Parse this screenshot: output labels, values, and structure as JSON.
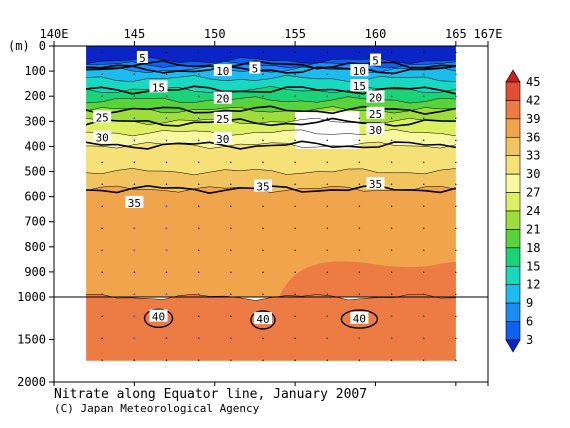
{
  "chart_data": {
    "type": "heatmap",
    "title": "Nitrate along Equator line, January 2007",
    "credit": "(C) Japan Meteorological Agency",
    "x_axis": {
      "ticks": [
        {
          "value": 140,
          "label": "140E"
        },
        {
          "value": 145,
          "label": "145"
        },
        {
          "value": 150,
          "label": "150"
        },
        {
          "value": 155,
          "label": "155"
        },
        {
          "value": 160,
          "label": "160"
        },
        {
          "value": 165,
          "label": "165"
        },
        {
          "value": 167,
          "label": "167E"
        }
      ],
      "range": [
        140,
        167
      ],
      "data_extent": [
        142,
        165
      ]
    },
    "y_axis": {
      "unit_label": "(m)",
      "upper_ticks": [
        0,
        100,
        200,
        300,
        400,
        500,
        600,
        700,
        800,
        900,
        1000
      ],
      "lower_ticks": [
        1000,
        1500,
        2000
      ],
      "upper_range": [
        0,
        1000
      ],
      "lower_range": [
        1000,
        2000
      ],
      "data_bottom": 1750,
      "break_depth": 1000
    },
    "missing_box": {
      "lon": [
        155,
        159
      ],
      "depth": [
        260,
        410
      ]
    },
    "colorbar": {
      "levels": [
        3,
        6,
        9,
        12,
        15,
        18,
        21,
        24,
        27,
        30,
        33,
        36,
        39,
        42,
        45
      ],
      "colors": [
        "#0a24c8",
        "#1060f0",
        "#1c8cf8",
        "#1cbcf0",
        "#18d8c0",
        "#1cd278",
        "#5ad23c",
        "#a0dc3c",
        "#dcf064",
        "#f8f8a0",
        "#f6e078",
        "#f2c460",
        "#f0a44c",
        "#ec7c44",
        "#e05030",
        "#c82020"
      ]
    },
    "layers": [
      {
        "value": 2,
        "top": 0,
        "bottom": 58
      },
      {
        "value": 4,
        "top": 58,
        "bottom": 75
      },
      {
        "value": 7,
        "top": 75,
        "bottom": 95
      },
      {
        "value": 10,
        "top": 95,
        "bottom": 130
      },
      {
        "value": 13,
        "top": 130,
        "bottom": 175
      },
      {
        "value": 16.5,
        "top": 175,
        "bottom": 215
      },
      {
        "value": 19.5,
        "top": 215,
        "bottom": 255
      },
      {
        "value": 22.5,
        "top": 255,
        "bottom": 300
      },
      {
        "value": 26,
        "top": 300,
        "bottom": 345
      },
      {
        "value": 28.5,
        "top": 345,
        "bottom": 395
      },
      {
        "value": 31.5,
        "top": 395,
        "bottom": 500
      },
      {
        "value": 34.5,
        "top": 500,
        "bottom": 570
      },
      {
        "value": 37.5,
        "top": 570,
        "bottom": 1000
      },
      {
        "value": 40.5,
        "top": 1000,
        "bottom": 1750
      }
    ],
    "contour_lines": [
      {
        "label": "5",
        "depth": 75
      },
      {
        "label": "10",
        "depth": 95
      },
      {
        "label": "15",
        "depth": 175
      },
      {
        "label": "20",
        "depth": 255
      },
      {
        "label": "25",
        "depth": 305
      },
      {
        "label": "30",
        "depth": 395
      },
      {
        "label": "35",
        "depth": 570
      }
    ],
    "contour_labels": [
      {
        "text": "5",
        "lon": 145.5,
        "depth": 48
      },
      {
        "text": "5",
        "lon": 152.5,
        "depth": 90
      },
      {
        "text": "5",
        "lon": 160.0,
        "depth": 58
      },
      {
        "text": "10",
        "lon": 150.5,
        "depth": 100
      },
      {
        "text": "10",
        "lon": 159.0,
        "depth": 100
      },
      {
        "text": "15",
        "lon": 146.5,
        "depth": 165
      },
      {
        "text": "15",
        "lon": 159.0,
        "depth": 160
      },
      {
        "text": "20",
        "lon": 150.5,
        "depth": 210
      },
      {
        "text": "20",
        "lon": 160.0,
        "depth": 205
      },
      {
        "text": "25",
        "lon": 143.0,
        "depth": 285
      },
      {
        "text": "25",
        "lon": 150.5,
        "depth": 290
      },
      {
        "text": "25",
        "lon": 160.0,
        "depth": 270
      },
      {
        "text": "30",
        "lon": 143.0,
        "depth": 365
      },
      {
        "text": "30",
        "lon": 150.5,
        "depth": 370
      },
      {
        "text": "30",
        "lon": 160.0,
        "depth": 335
      },
      {
        "text": "35",
        "lon": 145.0,
        "depth": 625
      },
      {
        "text": "35",
        "lon": 153.0,
        "depth": 560
      },
      {
        "text": "35",
        "lon": 160.0,
        "depth": 550
      },
      {
        "text": "40",
        "lon": 146.5,
        "depth": 1230
      },
      {
        "text": "40",
        "lon": 153.0,
        "depth": 1260
      },
      {
        "text": "40",
        "lon": 159.0,
        "depth": 1255
      }
    ]
  }
}
